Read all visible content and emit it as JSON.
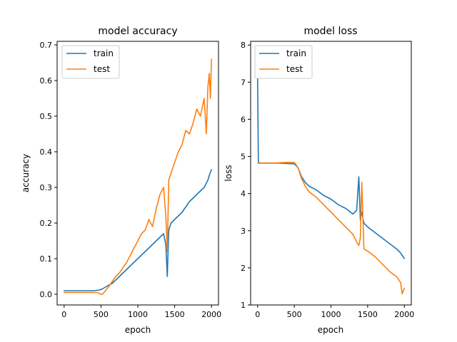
{
  "chart_data": [
    {
      "type": "line",
      "title": "model accuracy",
      "xlabel": "epoch",
      "ylabel": "accuracy",
      "xlim": [
        -95,
        2095
      ],
      "ylim": [
        -0.03,
        0.71
      ],
      "xticks": [
        0,
        500,
        1000,
        1500,
        2000
      ],
      "yticks": [
        0.0,
        0.1,
        0.2,
        0.3,
        0.4,
        0.5,
        0.6,
        0.7
      ],
      "ytick_labels": [
        "0.0",
        "0.1",
        "0.2",
        "0.3",
        "0.4",
        "0.5",
        "0.6",
        "0.7"
      ],
      "legend": "upper left",
      "grid": false,
      "series": [
        {
          "name": "train",
          "color": "#1f77b4",
          "x": [
            0,
            100,
            200,
            300,
            400,
            480,
            520,
            560,
            600,
            650,
            700,
            750,
            800,
            850,
            900,
            950,
            1000,
            1050,
            1100,
            1150,
            1200,
            1250,
            1300,
            1350,
            1380,
            1400,
            1420,
            1450,
            1500,
            1550,
            1600,
            1650,
            1700,
            1750,
            1800,
            1850,
            1900,
            1950,
            1980,
            2000
          ],
          "y": [
            0.01,
            0.01,
            0.01,
            0.01,
            0.01,
            0.012,
            0.015,
            0.02,
            0.025,
            0.03,
            0.04,
            0.05,
            0.06,
            0.07,
            0.08,
            0.09,
            0.1,
            0.11,
            0.12,
            0.13,
            0.14,
            0.15,
            0.16,
            0.17,
            0.14,
            0.05,
            0.18,
            0.2,
            0.21,
            0.22,
            0.23,
            0.245,
            0.26,
            0.27,
            0.28,
            0.29,
            0.3,
            0.32,
            0.34,
            0.35
          ]
        },
        {
          "name": "test",
          "color": "#ff7f0e",
          "x": [
            0,
            100,
            200,
            300,
            400,
            450,
            500,
            520,
            560,
            600,
            650,
            700,
            750,
            800,
            850,
            900,
            950,
            1000,
            1050,
            1100,
            1150,
            1200,
            1250,
            1300,
            1350,
            1380,
            1400,
            1420,
            1450,
            1500,
            1550,
            1600,
            1650,
            1700,
            1750,
            1800,
            1850,
            1900,
            1930,
            1950,
            1970,
            1985,
            2000
          ],
          "y": [
            0.005,
            0.005,
            0.005,
            0.005,
            0.005,
            0.005,
            0.0,
            0.0,
            0.01,
            0.02,
            0.035,
            0.05,
            0.06,
            0.075,
            0.09,
            0.11,
            0.13,
            0.15,
            0.17,
            0.18,
            0.21,
            0.19,
            0.24,
            0.28,
            0.3,
            0.22,
            0.12,
            0.32,
            0.34,
            0.37,
            0.4,
            0.42,
            0.46,
            0.45,
            0.48,
            0.52,
            0.5,
            0.55,
            0.45,
            0.58,
            0.62,
            0.55,
            0.66
          ]
        }
      ]
    },
    {
      "type": "line",
      "title": "model loss",
      "xlabel": "epoch",
      "ylabel": "loss",
      "xlim": [
        -95,
        2095
      ],
      "ylim": [
        1.0,
        8.1
      ],
      "xticks": [
        0,
        500,
        1000,
        1500,
        2000
      ],
      "yticks": [
        1,
        2,
        3,
        4,
        5,
        6,
        7,
        8
      ],
      "ytick_labels": [
        "1",
        "2",
        "3",
        "4",
        "5",
        "6",
        "7",
        "8"
      ],
      "legend": "upper left",
      "grid": false,
      "series": [
        {
          "name": "train",
          "color": "#1f77b4",
          "x": [
            0,
            5,
            10,
            20,
            100,
            200,
            300,
            400,
            500,
            550,
            600,
            650,
            700,
            800,
            900,
            1000,
            1100,
            1200,
            1300,
            1350,
            1380,
            1400,
            1420,
            1450,
            1500,
            1600,
            1700,
            1800,
            1900,
            1950,
            2000
          ],
          "y": [
            7.1,
            6.0,
            4.9,
            4.82,
            4.82,
            4.82,
            4.82,
            4.81,
            4.8,
            4.7,
            4.45,
            4.3,
            4.2,
            4.1,
            3.95,
            3.85,
            3.7,
            3.6,
            3.45,
            3.55,
            4.45,
            3.3,
            3.5,
            3.2,
            3.1,
            2.95,
            2.8,
            2.65,
            2.5,
            2.4,
            2.25
          ]
        },
        {
          "name": "test",
          "color": "#ff7f0e",
          "x": [
            0,
            100,
            200,
            300,
            400,
            500,
            550,
            600,
            650,
            700,
            800,
            900,
            1000,
            1100,
            1200,
            1250,
            1300,
            1350,
            1380,
            1400,
            1420,
            1450,
            1500,
            1600,
            1700,
            1800,
            1900,
            1950,
            1970,
            2000
          ],
          "y": [
            4.82,
            4.82,
            4.82,
            4.83,
            4.84,
            4.84,
            4.7,
            4.4,
            4.2,
            4.05,
            3.9,
            3.7,
            3.5,
            3.3,
            3.1,
            3.0,
            2.9,
            2.7,
            2.6,
            2.8,
            4.3,
            2.5,
            2.45,
            2.3,
            2.1,
            1.9,
            1.75,
            1.6,
            1.3,
            1.45
          ]
        }
      ]
    }
  ]
}
